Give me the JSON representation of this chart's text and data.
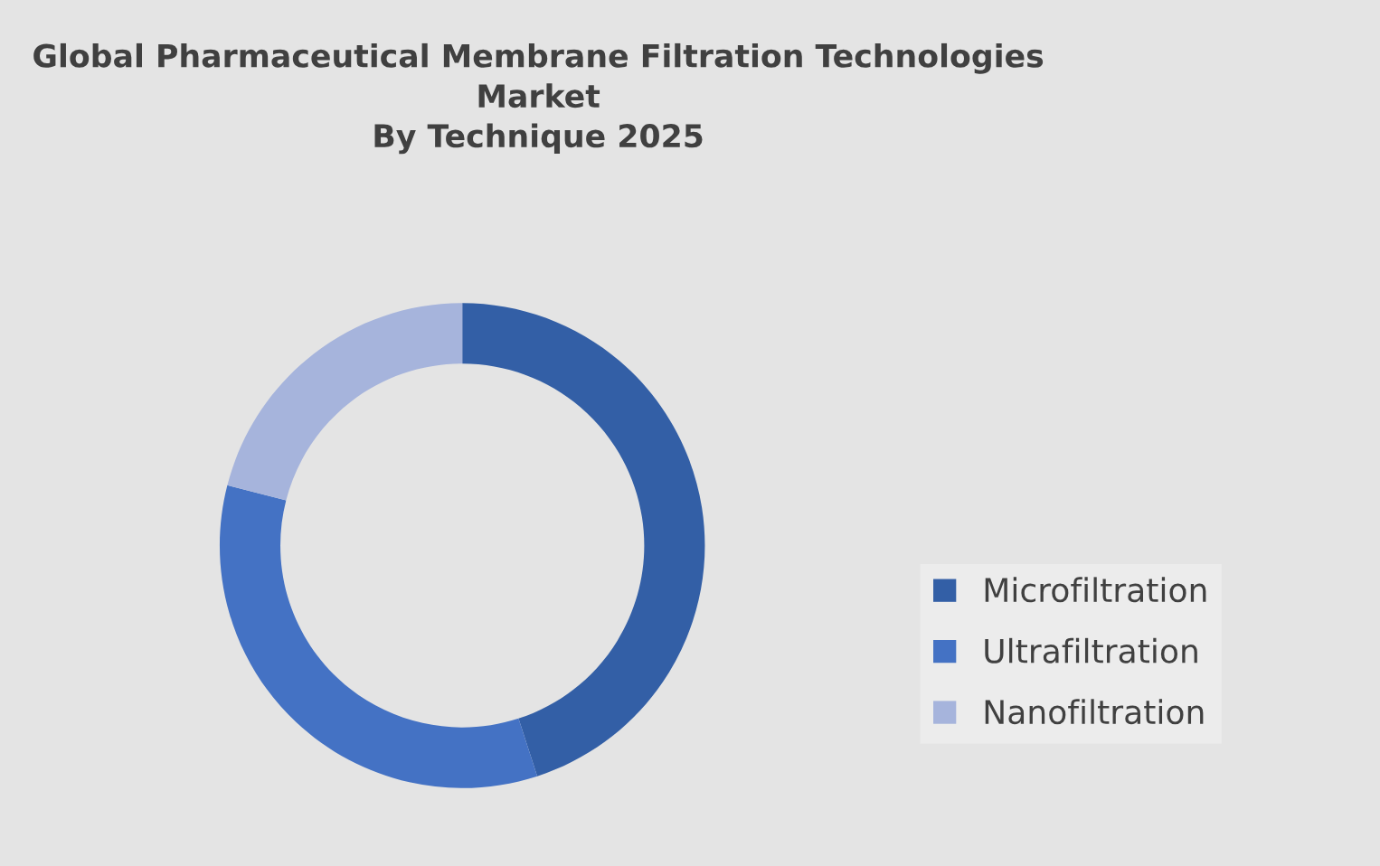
{
  "chart_data": {
    "type": "donut",
    "title": "Global Pharmaceutical Membrane Filtration Technologies\nMarket\nBy Technique 2025",
    "categories": [
      "Microfiltration",
      "Ultrafiltration",
      "Nanofiltration"
    ],
    "values": [
      45,
      34,
      21
    ],
    "colors": [
      "#335fa6",
      "#4472c4",
      "#a6b4dc"
    ],
    "legend": "right"
  }
}
